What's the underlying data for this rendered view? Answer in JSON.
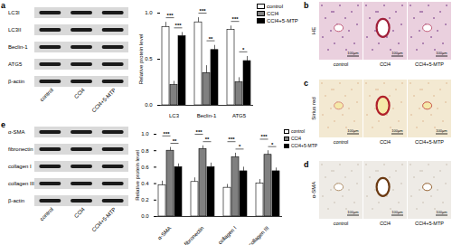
{
  "panels": {
    "a": {
      "letter": "a",
      "blot": {
        "bands": [
          "LC3I",
          "LC3II",
          "Beclin-1",
          "ATG5",
          "β-actin"
        ],
        "lanes": [
          "control",
          "CCl4",
          "CCl4+5-MTP"
        ]
      }
    },
    "b": {
      "letter": "b",
      "stain": "HE",
      "columns": [
        "control",
        "CCl4",
        "CCl4+5-MTP"
      ],
      "scale_bar": "100μm"
    },
    "c": {
      "letter": "c",
      "stain": "Sirius red",
      "columns": [
        "control",
        "CCl4",
        "CCl4+5-MTP"
      ],
      "scale_bar": "100μm"
    },
    "d": {
      "letter": "d",
      "stain": "α-SMA",
      "columns": [
        "control",
        "CCl4",
        "CCl4+5-MTP"
      ],
      "scale_bar": "100μm"
    },
    "e": {
      "letter": "e",
      "blot": {
        "bands": [
          "α-SMA",
          "fibronectin",
          "collagen I",
          "collagen III",
          "β-actin"
        ],
        "lanes": [
          "control",
          "CCl4",
          "CCl4+5-MTP"
        ]
      }
    }
  },
  "chart_data": [
    {
      "type": "bar",
      "y_label": "Relative protein level",
      "categories": [
        "LC3",
        "Beclin-1",
        "ATG5"
      ],
      "series": [
        {
          "name": "control",
          "color": "#ffffff",
          "values": [
            0.85,
            0.9,
            0.82
          ],
          "errors": [
            0.05,
            0.05,
            0.04
          ]
        },
        {
          "name": "CCl4",
          "color": "#808080",
          "values": [
            0.22,
            0.35,
            0.25
          ],
          "errors": [
            0.04,
            0.08,
            0.05
          ]
        },
        {
          "name": "CCl4+5-MTP",
          "color": "#000000",
          "values": [
            0.75,
            0.6,
            0.48
          ],
          "errors": [
            0.04,
            0.05,
            0.05
          ]
        }
      ],
      "ylim": [
        0,
        1
      ],
      "yticks": [
        {
          "value": 0,
          "label": "0.0"
        },
        0.5,
        {
          "value": 1,
          "label": "1.0"
        }
      ],
      "legend": "right",
      "annotations": [
        {
          "category": "LC3",
          "between": [
            "control",
            "CCl4"
          ],
          "text": "***"
        },
        {
          "category": "LC3",
          "between": [
            "CCl4",
            "CCl4+5-MTP"
          ],
          "text": "***"
        },
        {
          "category": "Beclin-1",
          "between": [
            "control",
            "CCl4"
          ],
          "text": "***"
        },
        {
          "category": "Beclin-1",
          "between": [
            "CCl4",
            "CCl4+5-MTP"
          ],
          "text": "**"
        },
        {
          "category": "ATG5",
          "between": [
            "control",
            "CCl4"
          ],
          "text": "***"
        },
        {
          "category": "ATG5",
          "between": [
            "CCl4",
            "CCl4+5-MTP"
          ],
          "text": "*"
        }
      ]
    },
    {
      "type": "bar",
      "y_label": "Relative protein level",
      "categories": [
        "α-SMA",
        "fibronectin",
        "collagen I",
        "collagen III"
      ],
      "series": [
        {
          "name": "control",
          "color": "#ffffff",
          "values": [
            0.38,
            0.42,
            0.35,
            0.4
          ],
          "errors": [
            0.05,
            0.05,
            0.04,
            0.05
          ]
        },
        {
          "name": "CCl4",
          "color": "#808080",
          "values": [
            0.8,
            0.82,
            0.72,
            0.75
          ],
          "errors": [
            0.04,
            0.04,
            0.05,
            0.05
          ]
        },
        {
          "name": "CCl4+5-MTP",
          "color": "#000000",
          "values": [
            0.6,
            0.6,
            0.55,
            0.55
          ],
          "errors": [
            0.04,
            0.05,
            0.05,
            0.04
          ]
        }
      ],
      "ylim": [
        0,
        1
      ],
      "yticks": [
        {
          "value": 0,
          "label": "0.0"
        },
        0.2,
        0.4,
        0.6,
        0.8,
        {
          "value": 1,
          "label": "1.0"
        }
      ],
      "legend": "right",
      "annotations": [
        {
          "category": "α-SMA",
          "between": [
            "control",
            "CCl4"
          ],
          "text": "***"
        },
        {
          "category": "α-SMA",
          "between": [
            "CCl4",
            "CCl4+5-MTP"
          ],
          "text": "**"
        },
        {
          "category": "fibronectin",
          "between": [
            "control",
            "CCl4"
          ],
          "text": "***"
        },
        {
          "category": "fibronectin",
          "between": [
            "CCl4",
            "CCl4+5-MTP"
          ],
          "text": "**"
        },
        {
          "category": "collagen I",
          "between": [
            "control",
            "CCl4"
          ],
          "text": "***"
        },
        {
          "category": "collagen I",
          "between": [
            "CCl4",
            "CCl4+5-MTP"
          ],
          "text": "*"
        },
        {
          "category": "collagen III",
          "between": [
            "control",
            "CCl4"
          ],
          "text": "***"
        },
        {
          "category": "collagen III",
          "between": [
            "CCl4",
            "CCl4+5-MTP"
          ],
          "text": "*"
        }
      ]
    }
  ]
}
